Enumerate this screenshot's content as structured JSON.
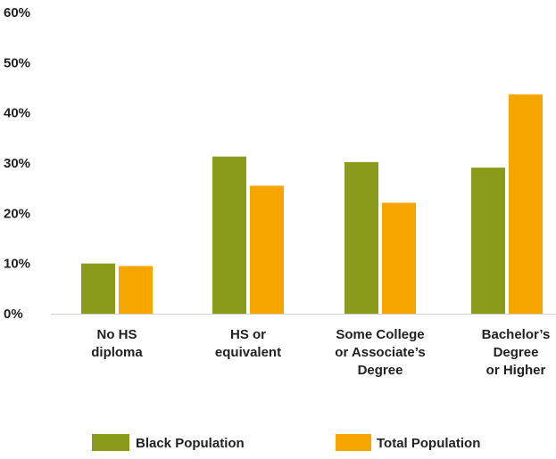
{
  "chart_data": {
    "type": "bar",
    "categories": [
      [
        "No HS",
        "diploma"
      ],
      [
        "HS or",
        "equivalent"
      ],
      [
        "Some College",
        "or Associate’s",
        "Degree"
      ],
      [
        "Bachelor’s",
        "Degree",
        "or Higher"
      ]
    ],
    "series": [
      {
        "name": "Black Population",
        "color": "#8a9a1a",
        "values": [
          10,
          31.3,
          30.2,
          29.1
        ]
      },
      {
        "name": "Total Population",
        "color": "#f7a600",
        "values": [
          9.5,
          25.5,
          22.1,
          43.7
        ]
      }
    ],
    "ylim": [
      0,
      60
    ],
    "yticks": [
      "0%",
      "10%",
      "20%",
      "30%",
      "40%",
      "50%",
      "60%"
    ],
    "ytick_values": [
      0,
      10,
      20,
      30,
      40,
      50,
      60
    ],
    "grid": false,
    "legend_position": "bottom"
  }
}
